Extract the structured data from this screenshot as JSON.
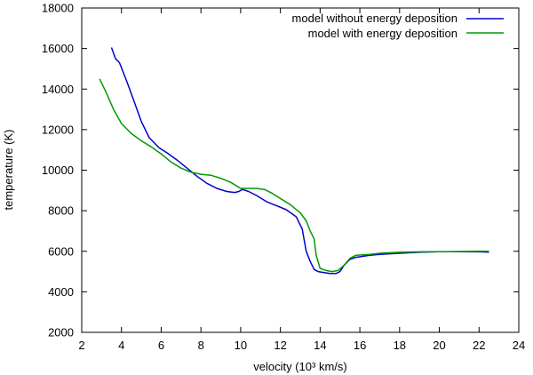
{
  "chart_data": {
    "type": "line",
    "title": "",
    "xlabel": "velocity (10³ km/s)",
    "ylabel": "temperature (K)",
    "xlim": [
      2,
      24
    ],
    "ylim": [
      2000,
      18000
    ],
    "xticks": [
      2,
      4,
      6,
      8,
      10,
      12,
      14,
      16,
      18,
      20,
      22,
      24
    ],
    "yticks": [
      2000,
      4000,
      6000,
      8000,
      10000,
      12000,
      14000,
      16000,
      18000
    ],
    "grid": false,
    "legend_position": "top-right",
    "series": [
      {
        "name": "model without energy deposition",
        "color": "#0000cc",
        "x": [
          3.5,
          3.7,
          3.9,
          4.1,
          4.3,
          4.6,
          5.0,
          5.4,
          5.9,
          6.3,
          6.8,
          7.3,
          7.8,
          8.3,
          8.8,
          9.3,
          9.7,
          9.9,
          10.1,
          10.4,
          10.8,
          11.3,
          11.8,
          12.3,
          12.8,
          13.1,
          13.3,
          13.5,
          13.7,
          13.9,
          14.2,
          14.5,
          14.8,
          15.0,
          15.2,
          15.5,
          15.8,
          16.5,
          17.0,
          18.0,
          19.0,
          20.0,
          21.0,
          22.0,
          22.5
        ],
        "values": [
          16050,
          15500,
          15300,
          14800,
          14300,
          13500,
          12400,
          11600,
          11100,
          10850,
          10500,
          10100,
          9700,
          9350,
          9100,
          8950,
          8900,
          8950,
          9050,
          8950,
          8750,
          8450,
          8250,
          8050,
          7700,
          7100,
          6000,
          5500,
          5100,
          5000,
          4950,
          4900,
          4900,
          5000,
          5300,
          5600,
          5700,
          5800,
          5850,
          5900,
          5950,
          5980,
          5980,
          5970,
          5960
        ]
      },
      {
        "name": "model with energy deposition",
        "color": "#009900",
        "x": [
          2.9,
          3.2,
          3.6,
          4.0,
          4.5,
          5.0,
          5.5,
          6.0,
          6.5,
          7.0,
          7.5,
          8.0,
          8.5,
          9.0,
          9.5,
          10.0,
          10.4,
          10.8,
          11.2,
          11.6,
          12.0,
          12.5,
          13.0,
          13.3,
          13.5,
          13.7,
          13.8,
          14.0,
          14.3,
          14.6,
          14.9,
          15.2,
          15.5,
          15.8,
          16.5,
          17.0,
          18.0,
          19.0,
          20.0,
          21.0,
          22.0,
          22.5
        ],
        "values": [
          14500,
          13900,
          13000,
          12300,
          11800,
          11450,
          11150,
          10800,
          10400,
          10100,
          9900,
          9800,
          9750,
          9600,
          9400,
          9100,
          9100,
          9100,
          9050,
          8850,
          8600,
          8300,
          7900,
          7500,
          7000,
          6600,
          5800,
          5150,
          5050,
          5000,
          5050,
          5300,
          5650,
          5800,
          5850,
          5900,
          5950,
          5970,
          5980,
          5990,
          6000,
          6000
        ]
      }
    ]
  }
}
